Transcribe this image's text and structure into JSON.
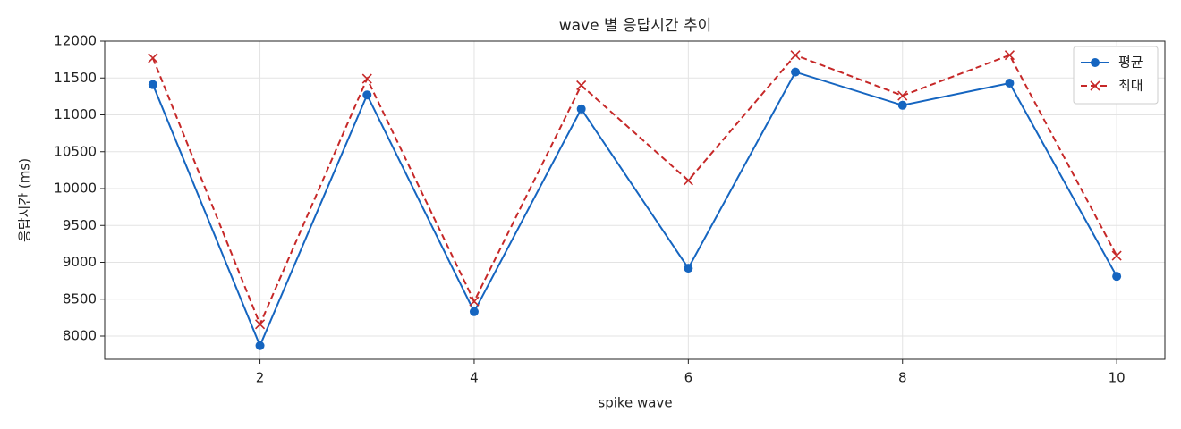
{
  "chart_data": {
    "type": "line",
    "title": "wave 별 응답시간 추이",
    "x_label": "spike wave",
    "y_label": "응답시간 (ms)",
    "x": [
      1,
      2,
      3,
      4,
      5,
      6,
      7,
      8,
      9,
      10
    ],
    "series": [
      {
        "name": "평균",
        "color": "#1565c0",
        "marker": "o",
        "linestyle": "solid",
        "values": [
          11410,
          7870,
          11270,
          8330,
          11080,
          8920,
          11580,
          11130,
          11430,
          8810
        ]
      },
      {
        "name": "최대",
        "color": "#c62828",
        "marker": "x",
        "linestyle": "dashed",
        "values": [
          11770,
          8160,
          11490,
          8470,
          11400,
          10110,
          11810,
          11260,
          11810,
          9090
        ]
      }
    ],
    "xlim": [
      0.55,
      10.45
    ],
    "xticks": [
      2,
      4,
      6,
      8,
      10
    ],
    "ylim": [
      7685,
      12000
    ],
    "yticks": [
      8000,
      8500,
      9000,
      9500,
      10000,
      10500,
      11000,
      11500,
      12000
    ],
    "grid": true,
    "legend": "upper right"
  }
}
